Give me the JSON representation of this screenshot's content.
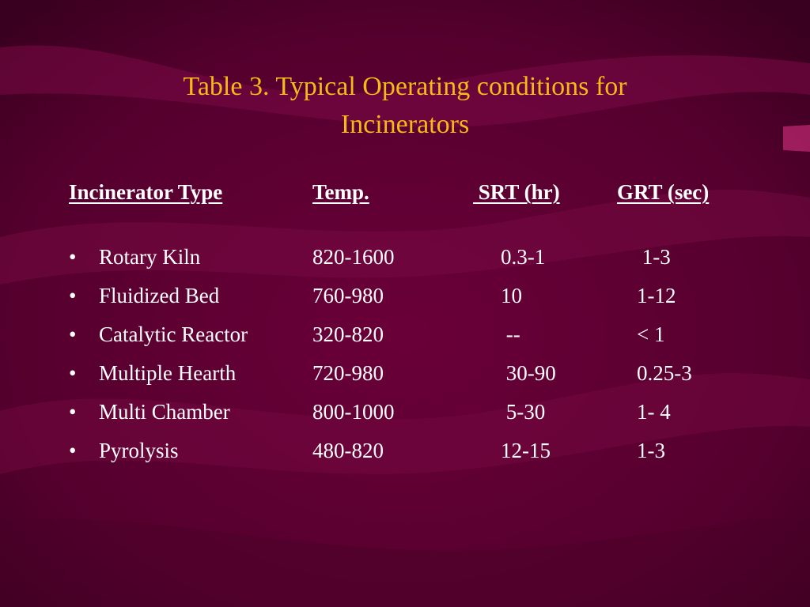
{
  "slide": {
    "title_line1": "Table 3. Typical Operating conditions for",
    "title_line2": "Incinerators",
    "colors": {
      "title": "#f5b91a",
      "text": "#ffffff",
      "background": "#5a0030"
    }
  },
  "table": {
    "headers": [
      "Incinerator Type",
      "Temp.",
      " SRT (hr)",
      "GRT (sec)"
    ],
    "bullet": "•",
    "rows": [
      {
        "type": "Rotary Kiln",
        "temp": "820-1600",
        "srt": "0.3-1",
        "grt": " 1-3"
      },
      {
        "type": "Fluidized Bed",
        "temp": "760-980",
        "srt": "10",
        "grt": "1-12"
      },
      {
        "type": "Catalytic Reactor",
        "temp": "320-820",
        "srt": " --",
        "grt": "< 1"
      },
      {
        "type": "Multiple Hearth",
        "temp": "720-980",
        "srt": " 30-90",
        "grt": "0.25-3"
      },
      {
        "type": "Multi Chamber",
        "temp": "800-1000",
        "srt": " 5-30",
        "grt": "1- 4"
      },
      {
        "type": "Pyrolysis",
        "temp": "480-820",
        "srt": "12-15",
        "grt": "1-3"
      }
    ]
  }
}
